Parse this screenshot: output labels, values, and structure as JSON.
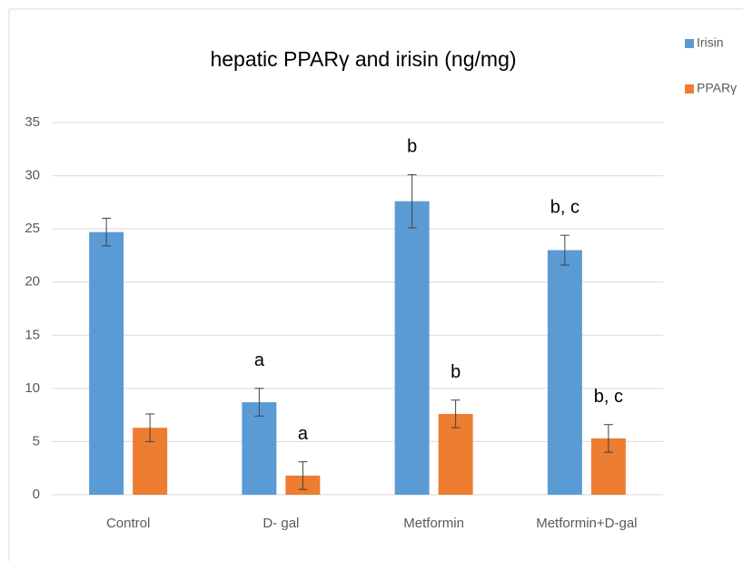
{
  "chart_data": {
    "type": "bar",
    "title": "hepatic PPARγ and irisin (ng/mg)",
    "categories": [
      "Control",
      "D- gal",
      "Metformin",
      "Metformin+D-gal"
    ],
    "series": [
      {
        "name": "Irisin",
        "color": "#5b9bd5",
        "values": [
          24.7,
          8.7,
          27.6,
          23.0
        ],
        "errors": [
          1.3,
          1.3,
          2.5,
          1.4
        ],
        "annotations": [
          null,
          "a",
          "b",
          "b, c"
        ]
      },
      {
        "name": "PPARγ",
        "color": "#ed7d31",
        "values": [
          6.3,
          1.8,
          7.6,
          5.3
        ],
        "errors": [
          1.3,
          1.3,
          1.3,
          1.3
        ],
        "annotations": [
          null,
          "a",
          "b",
          "b, c"
        ]
      }
    ],
    "ylim": [
      0,
      35
    ],
    "yticks": [
      0,
      5,
      10,
      15,
      20,
      25,
      30,
      35
    ],
    "grid": true,
    "legend": "right"
  }
}
